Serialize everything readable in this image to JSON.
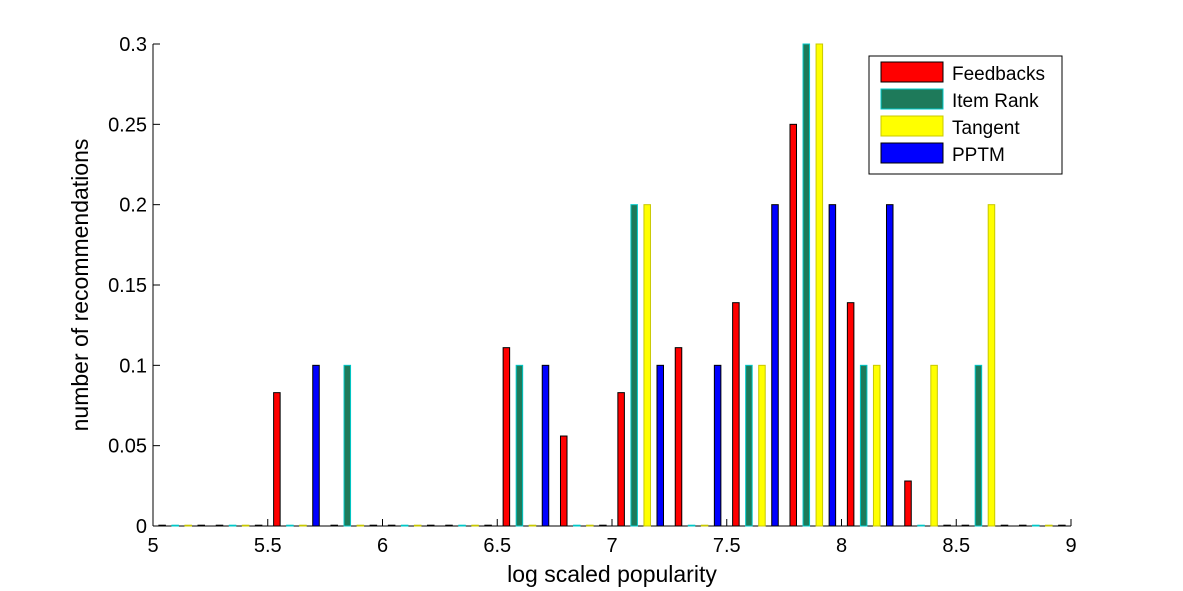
{
  "chart_data": {
    "type": "bar",
    "title": "",
    "xlabel": "log scaled popularity",
    "ylabel": "number of recommendations",
    "xlim": [
      5,
      9
    ],
    "ylim": [
      0,
      0.3
    ],
    "xticks": [
      "5",
      "5.5",
      "6",
      "6.5",
      "7",
      "7.5",
      "8",
      "8.5",
      "9"
    ],
    "yticks": [
      "0",
      "0.05",
      "0.1",
      "0.15",
      "0.2",
      "0.25",
      "0.3"
    ],
    "legend_position": "top-right",
    "grid": false,
    "bin_centers": [
      5.125,
      5.375,
      5.625,
      5.875,
      6.125,
      6.375,
      6.625,
      6.875,
      7.125,
      7.375,
      7.625,
      7.875,
      8.125,
      8.375,
      8.625,
      8.875
    ],
    "series": [
      {
        "name": "Feedbacks",
        "color": "#ff0000",
        "edge": "#000000",
        "values": [
          0,
          0,
          0.083,
          0,
          0,
          0,
          0.111,
          0.056,
          0.083,
          0.111,
          0.139,
          0.25,
          0.139,
          0.028,
          0,
          0
        ]
      },
      {
        "name": "Item Rank",
        "color": "#1e7a5a",
        "edge": "#00c8c8",
        "values": [
          0,
          0,
          0,
          0.1,
          0,
          0,
          0.1,
          0,
          0.2,
          0,
          0.1,
          0.3,
          0.1,
          0,
          0.1,
          0
        ]
      },
      {
        "name": "Tangent",
        "color": "#ffff00",
        "edge": "#c8c800",
        "values": [
          0,
          0,
          0,
          0,
          0,
          0,
          0,
          0,
          0.2,
          0,
          0.1,
          0.3,
          0.1,
          0.1,
          0.2,
          0
        ]
      },
      {
        "name": "PPTM",
        "color": "#0000ff",
        "edge": "#000000",
        "values": [
          0,
          0,
          0.1,
          0,
          0,
          0,
          0.1,
          0,
          0.1,
          0.1,
          0.2,
          0.2,
          0.2,
          0,
          0,
          0
        ]
      }
    ]
  }
}
